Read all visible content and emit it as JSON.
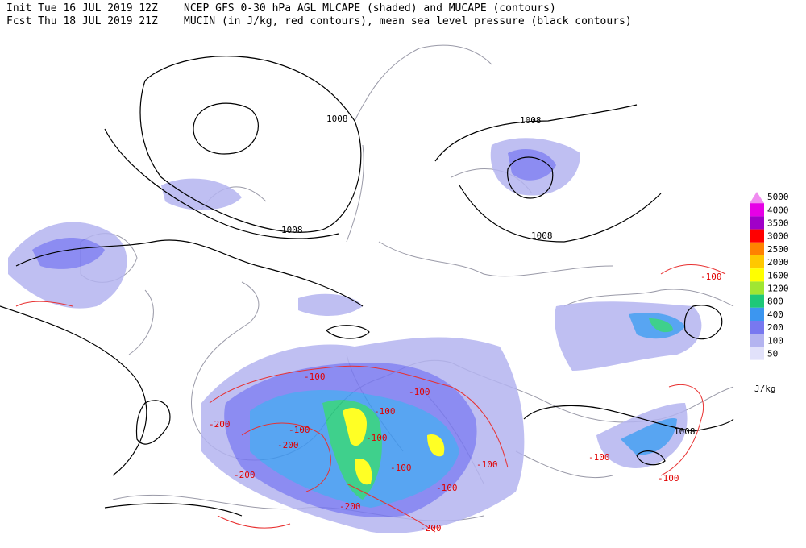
{
  "header": {
    "init": "Init  Tue 16 JUL 2019 12Z",
    "fcst": "Fcst Thu 18 JUL 2019 21Z",
    "line1": "NCEP GFS 0-30 hPa AGL MLCAPE (shaded) and MUCAPE (contours)",
    "line2": "MUCIN (in J/kg, red contours), mean sea level pressure (black contours)"
  },
  "legend": {
    "unit": "J/kg",
    "levels": [
      {
        "label": "5000",
        "color": "#f08cf0"
      },
      {
        "label": "4000",
        "color": "#e600e6"
      },
      {
        "label": "3500",
        "color": "#a000c8"
      },
      {
        "label": "3000",
        "color": "#ff0000"
      },
      {
        "label": "2500",
        "color": "#ff8200"
      },
      {
        "label": "2000",
        "color": "#ffc800"
      },
      {
        "label": "1600",
        "color": "#ffff00"
      },
      {
        "label": "1200",
        "color": "#a0e632"
      },
      {
        "label": "800",
        "color": "#1ec878"
      },
      {
        "label": "400",
        "color": "#3c96f0"
      },
      {
        "label": "200",
        "color": "#7878f0"
      },
      {
        "label": "100",
        "color": "#b4b4f0"
      },
      {
        "label": "50",
        "color": "#e1e1fa"
      }
    ]
  },
  "pressure_labels": [
    "1008",
    "1008",
    "1008",
    "1008",
    "1008"
  ],
  "cin_labels": [
    "-100",
    "-100",
    "-100",
    "-100",
    "-100",
    "-100",
    "-100",
    "-100",
    "-100",
    "-100",
    "-100",
    "-200",
    "-200",
    "-200",
    "-200",
    "-200"
  ]
}
